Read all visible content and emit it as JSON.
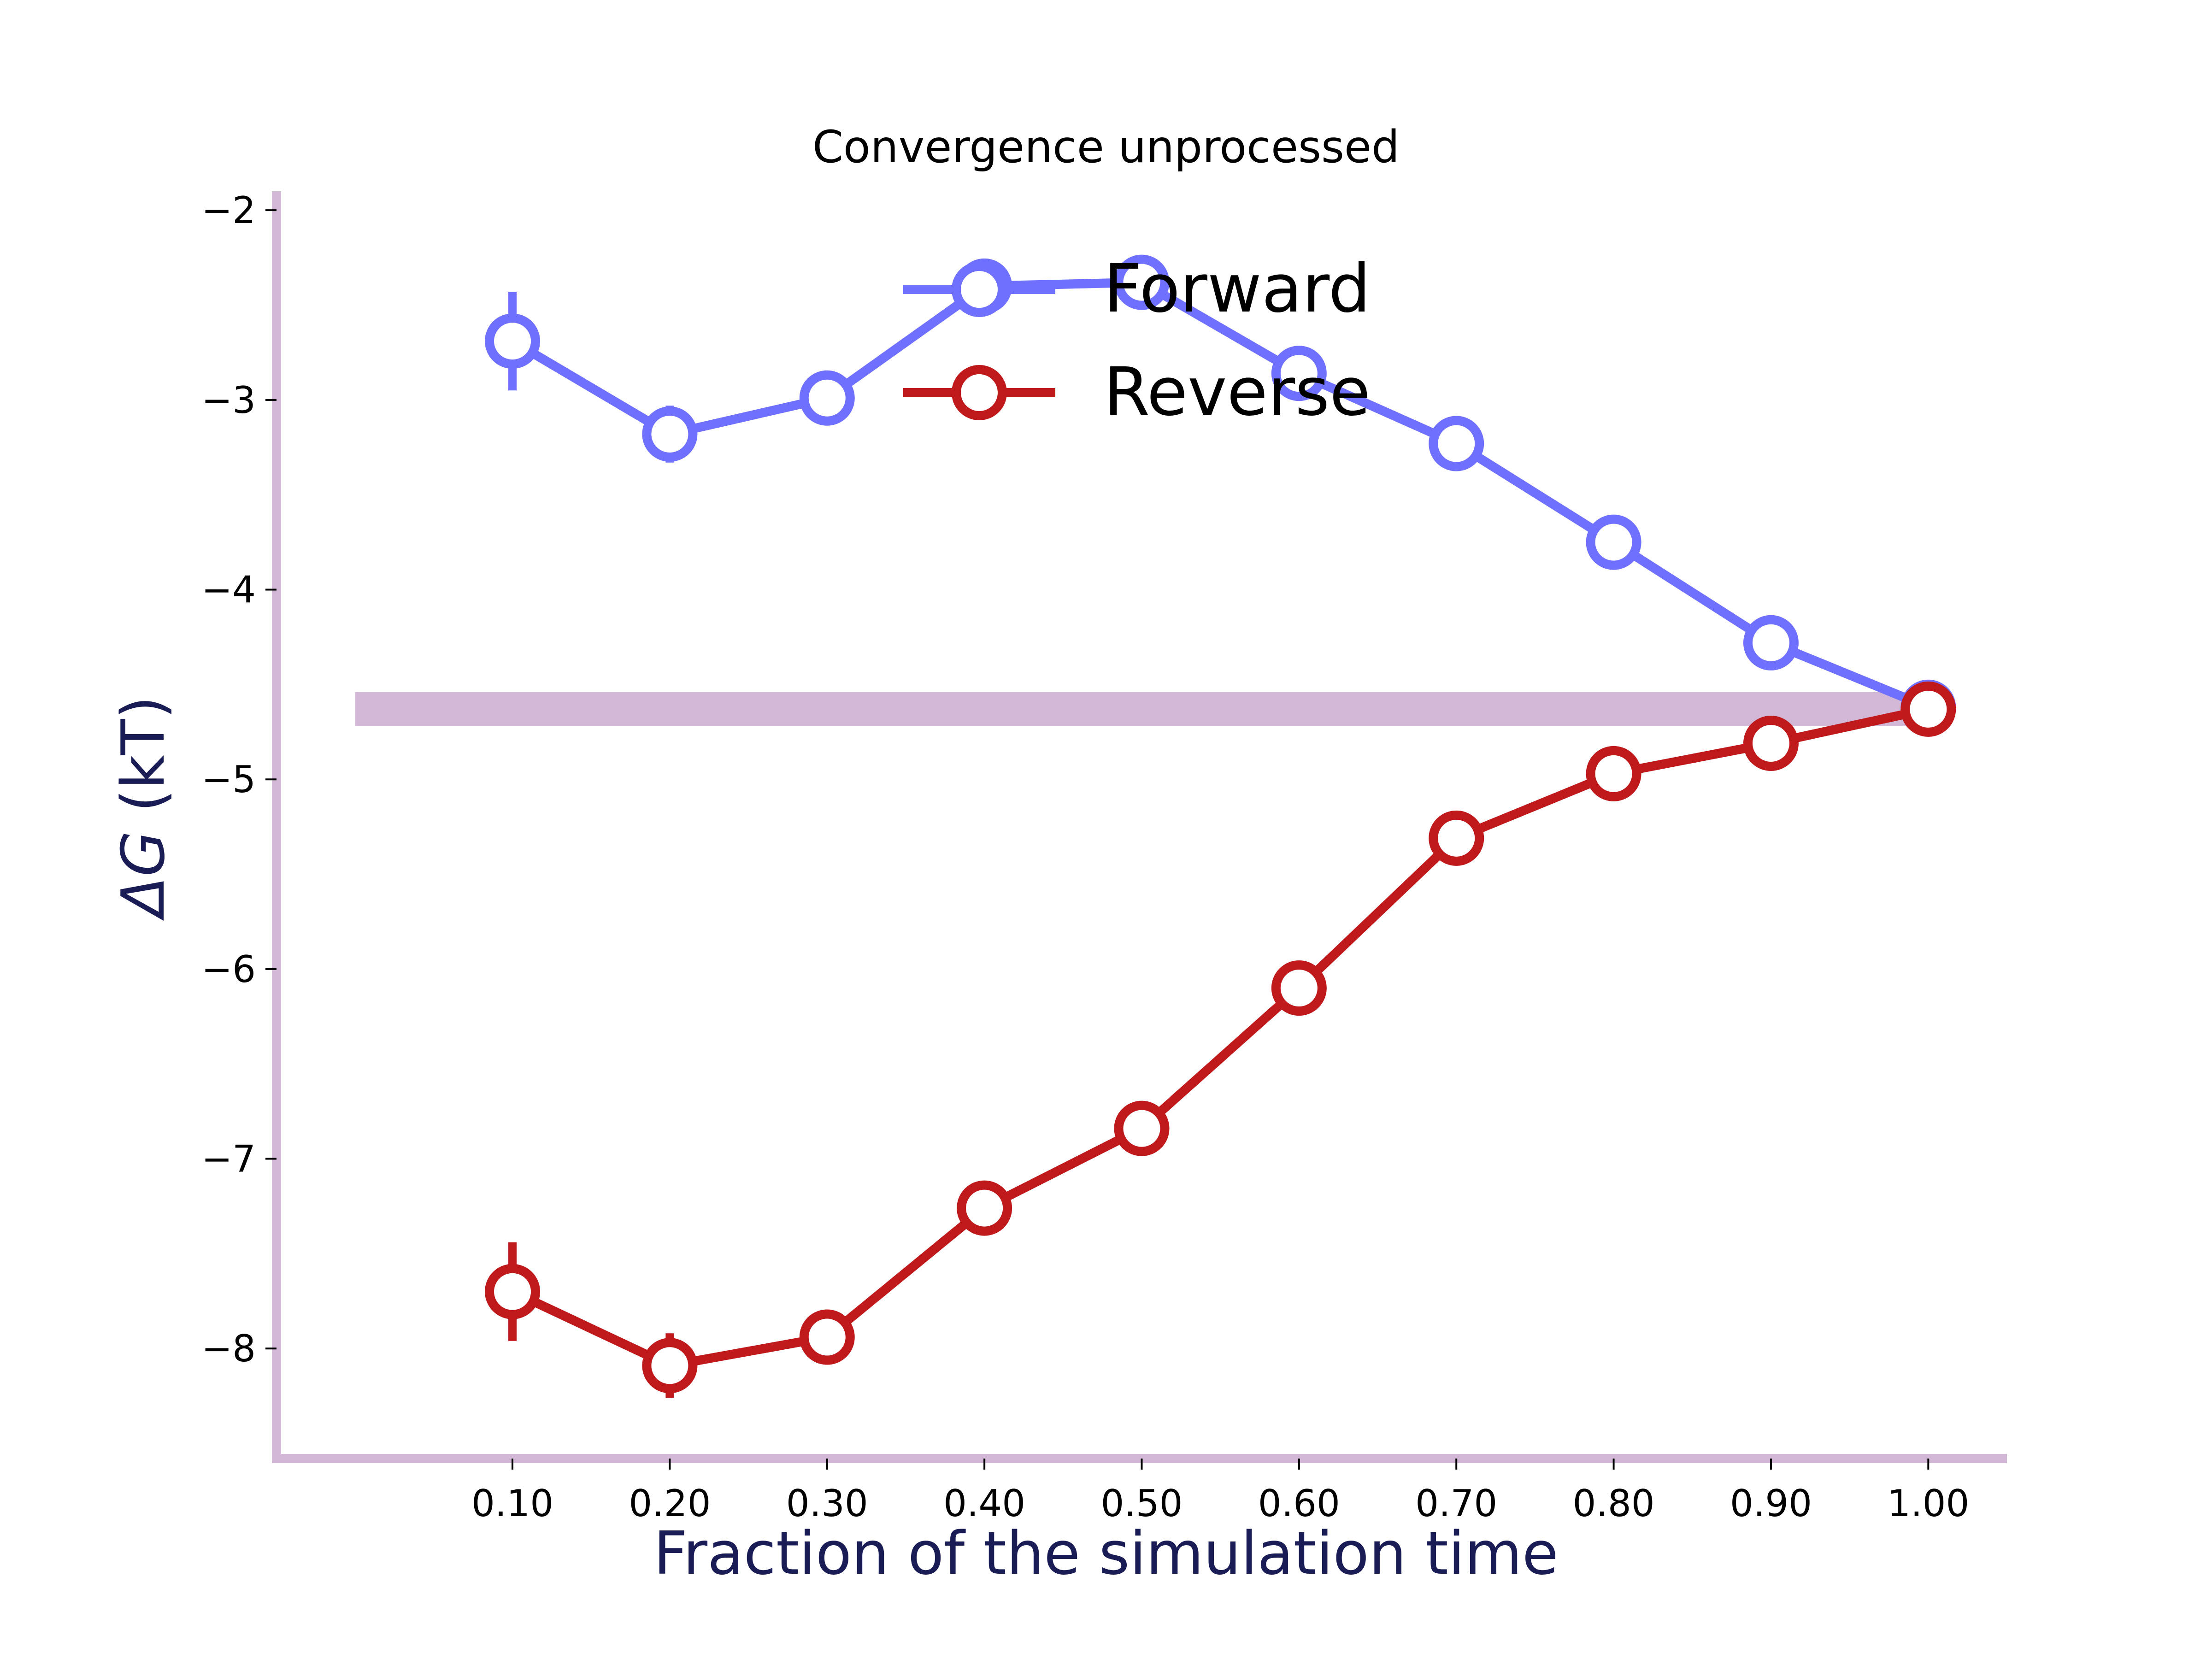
{
  "chart_data": {
    "type": "line",
    "title": "Convergence unprocessed",
    "xlabel": "Fraction of the simulation time",
    "ylabel_prefix": "ΔG",
    "ylabel_suffix": " (kT)",
    "x": [
      0.1,
      0.2,
      0.3,
      0.4,
      0.5,
      0.6,
      0.7,
      0.8,
      0.9,
      1.0
    ],
    "x_tick_labels": [
      "0.10",
      "0.20",
      "0.30",
      "0.40",
      "0.50",
      "0.60",
      "0.70",
      "0.80",
      "0.90",
      "1.00"
    ],
    "y_ticks": [
      -2,
      -3,
      -4,
      -5,
      -6,
      -7,
      -8
    ],
    "y_tick_labels": [
      "−2",
      "−3",
      "−4",
      "−5",
      "−6",
      "−7",
      "−8"
    ],
    "xlim": [
      -0.05,
      1.05
    ],
    "ylim": [
      -8.58,
      -1.9
    ],
    "grid": false,
    "legend_position": "top-center",
    "reference_band": {
      "value": -4.63,
      "half_width": 0.09,
      "x_start": 0.0,
      "x_end": 1.0,
      "color": "#D2B8D6"
    },
    "series": [
      {
        "name": "Forward",
        "color": "#7070FF",
        "y": [
          -2.69,
          -3.18,
          -2.99,
          -2.4,
          -2.38,
          -2.86,
          -3.23,
          -3.75,
          -4.28,
          -4.62
        ],
        "err": [
          0.26,
          0.15,
          0.1,
          0.07,
          0.05,
          0.05,
          0.04,
          0.04,
          0.04,
          0.03
        ]
      },
      {
        "name": "Reverse",
        "color": "#C0191C",
        "y": [
          -7.7,
          -8.09,
          -7.94,
          -7.26,
          -6.84,
          -6.1,
          -5.31,
          -4.97,
          -4.81,
          -4.63
        ],
        "err": [
          0.26,
          0.17,
          0.12,
          0.07,
          0.05,
          0.05,
          0.04,
          0.04,
          0.04,
          0.03
        ]
      }
    ],
    "colors": {
      "axes": "#D2B8D6",
      "label": "#1A1C56",
      "text": "#000000"
    }
  }
}
